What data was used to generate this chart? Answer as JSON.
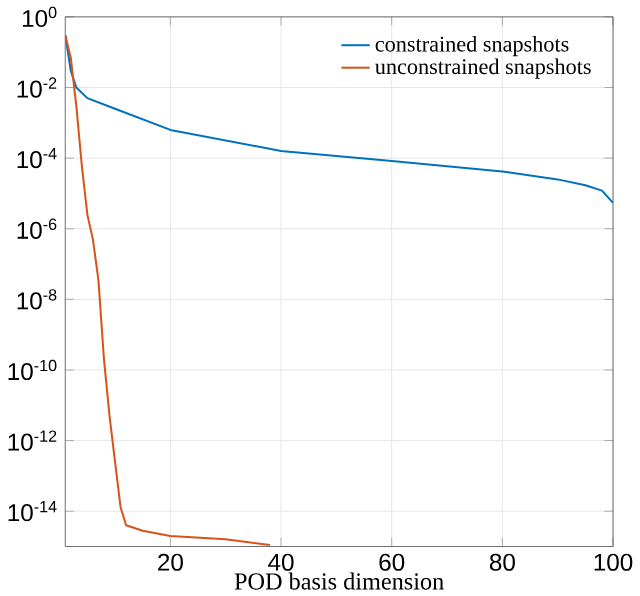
{
  "chart_data": {
    "type": "line",
    "xlabel": "POD basis dimension",
    "series": [
      {
        "name": "constrained snapshots",
        "color": "#0072bd",
        "x": [
          1,
          2,
          3,
          5,
          10,
          20,
          40,
          60,
          80,
          90,
          95,
          98,
          100
        ],
        "values": [
          0.31,
          0.03,
          0.01,
          0.005,
          0.0025,
          0.00063,
          0.00016,
          8.3e-05,
          4.2e-05,
          2.5e-05,
          1.7e-05,
          1.2e-05,
          5.4e-06
        ]
      },
      {
        "name": "unconstrained snapshots",
        "color": "#d95319",
        "x": [
          1,
          2,
          3,
          4,
          5,
          6,
          7,
          8,
          9,
          10,
          11,
          12,
          15,
          20,
          30,
          38
        ],
        "values": [
          0.3,
          0.07,
          0.003,
          6e-05,
          2.5e-06,
          5e-07,
          3.5e-08,
          2e-10,
          5e-12,
          2.5e-13,
          1.3e-14,
          4e-15,
          2.8e-15,
          2e-15,
          1.6e-15,
          1.1e-15
        ]
      }
    ],
    "log": "y",
    "grid": true,
    "legend": "top right",
    "marker": "none",
    "line_style": "solid",
    "xlim": [
      1,
      100
    ],
    "xticks": [
      20,
      40,
      60,
      80,
      100
    ],
    "ylim": [
      1e-15,
      1
    ],
    "yticks": [
      {
        "value": 1,
        "label": "10$^{0}$"
      },
      {
        "value": 0.01,
        "label": "10$^{-2}$"
      },
      {
        "value": 0.0001,
        "label": "10$^{-4}$"
      },
      {
        "value": 1e-06,
        "label": "10$^{-6}$"
      },
      {
        "value": 1e-08,
        "label": "10$^{-8}$"
      },
      {
        "value": 1e-10,
        "label": "10$^{-10}$"
      },
      {
        "value": 1e-12,
        "label": "10$^{-12}$"
      },
      {
        "value": 1e-14,
        "label": "10$^{-14}$"
      }
    ]
  }
}
